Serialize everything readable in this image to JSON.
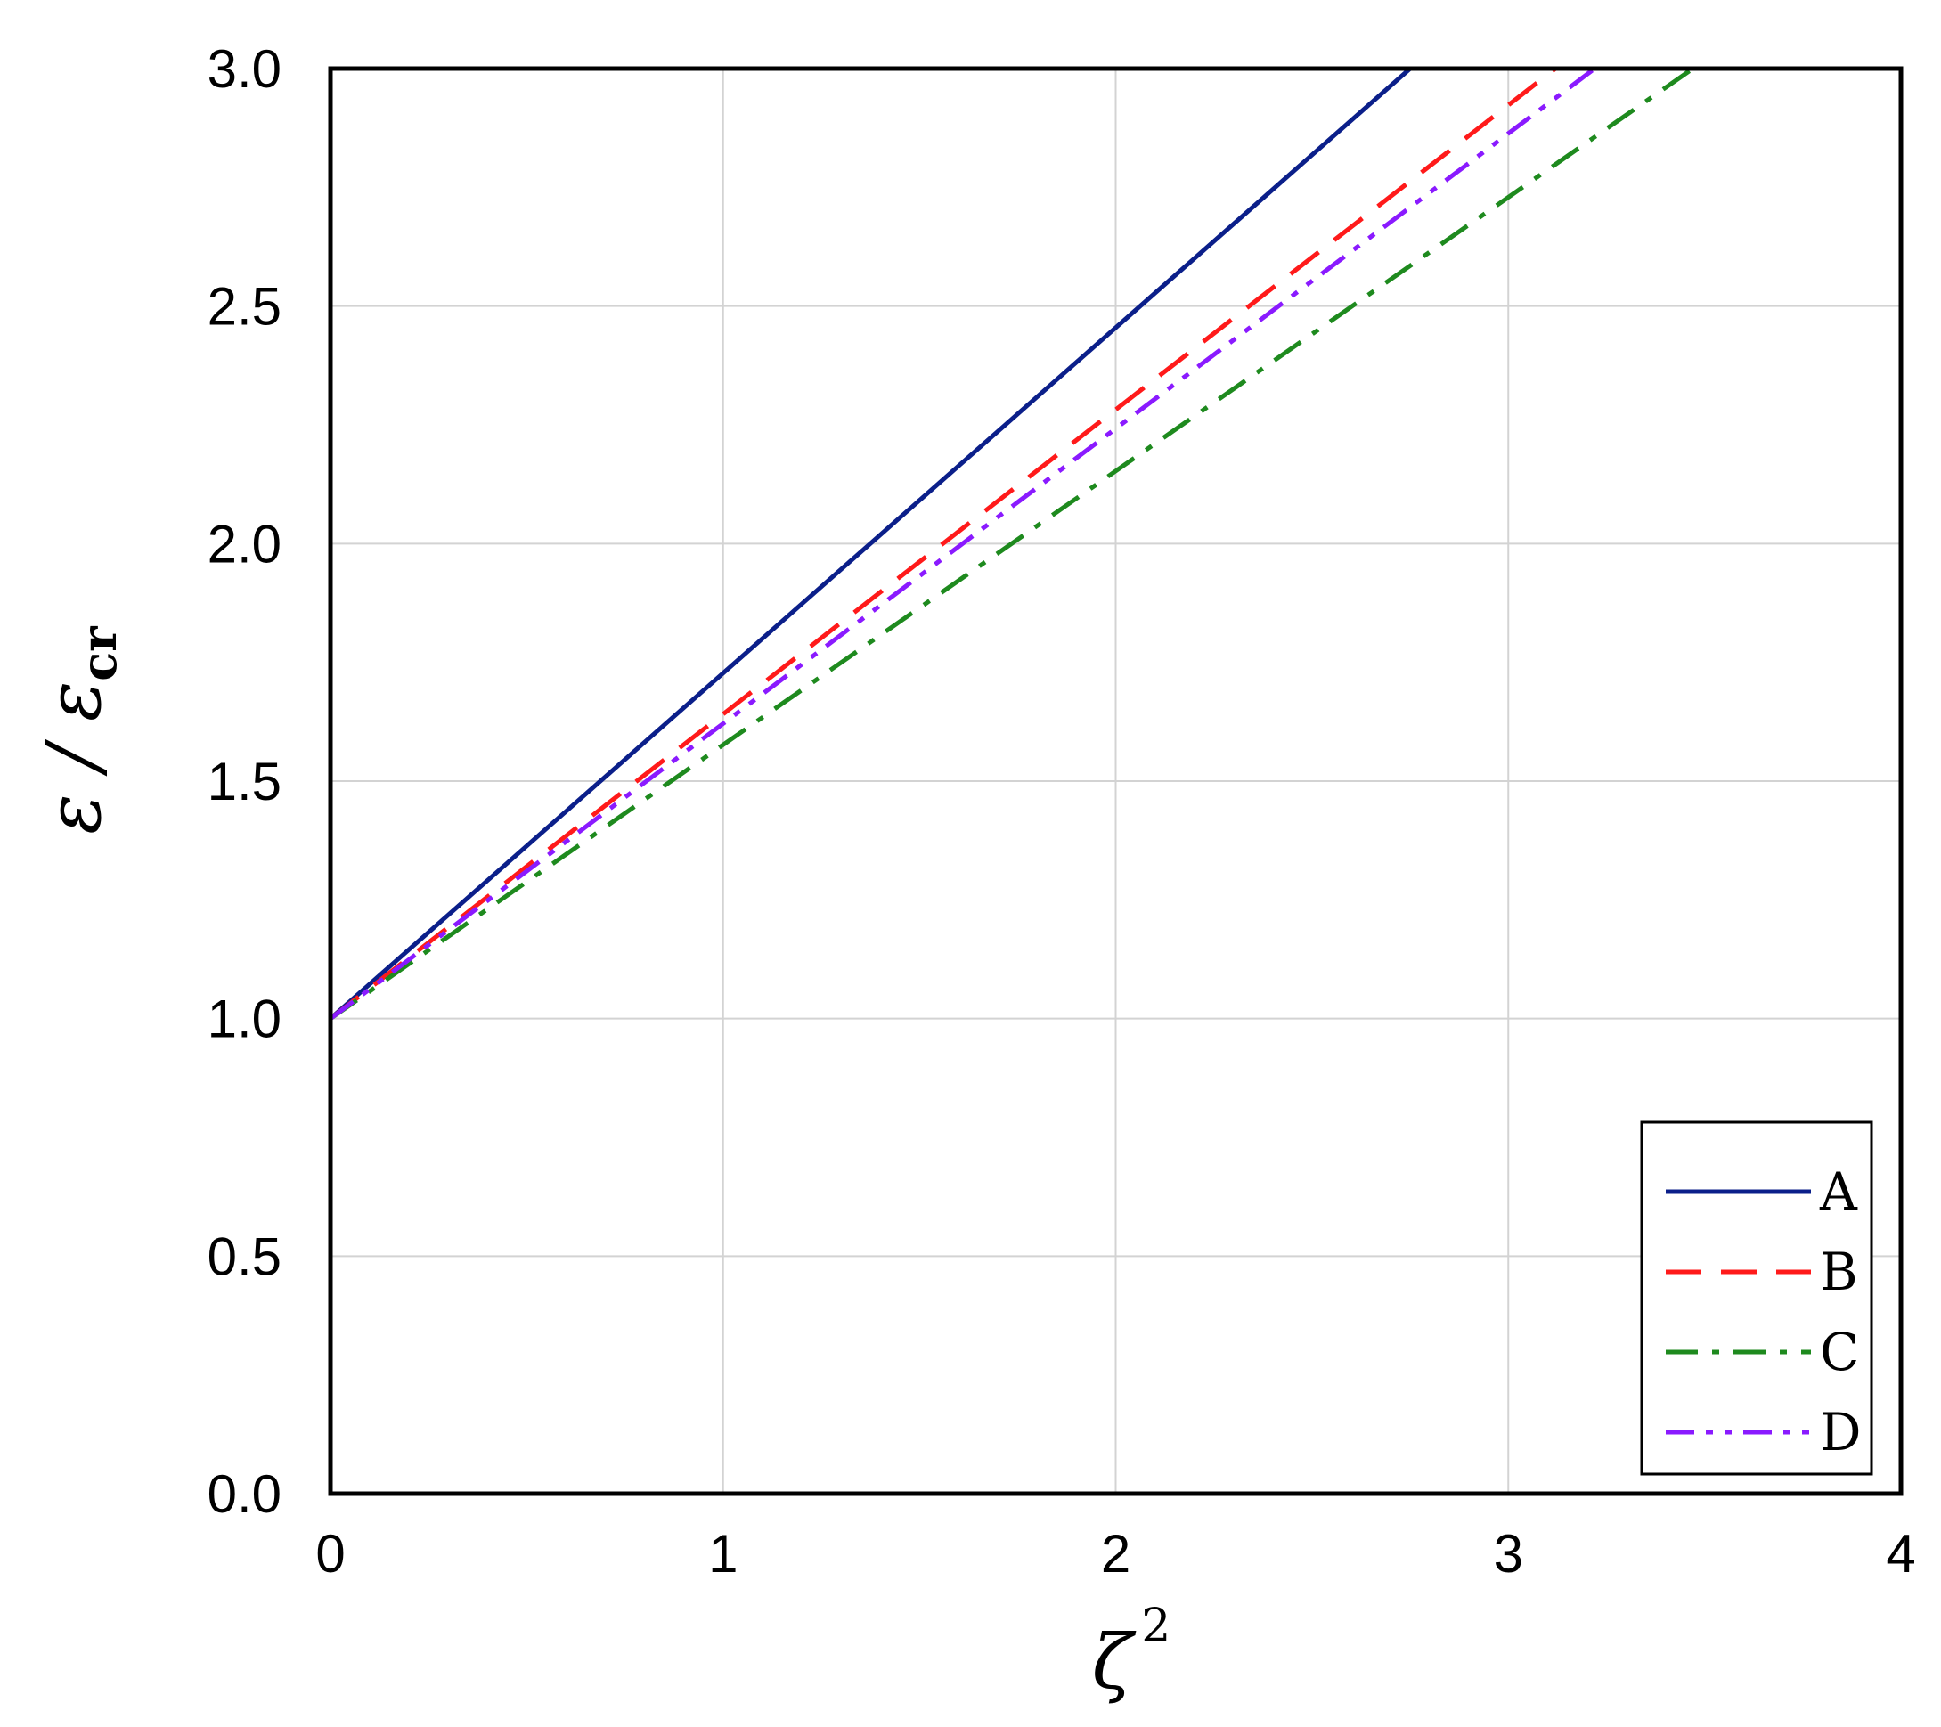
{
  "chart_data": {
    "type": "line",
    "xlabel": {
      "base": "ζ",
      "sup": "2"
    },
    "ylabel": {
      "base": "ε / ε",
      "sub": "cr"
    },
    "xlim": [
      0,
      4
    ],
    "ylim": [
      0,
      3
    ],
    "xticks": [
      "0",
      "1",
      "2",
      "3",
      "4"
    ],
    "yticks": [
      "0.0",
      "0.5",
      "1.0",
      "1.5",
      "2.0",
      "2.5",
      "3.0"
    ],
    "grid": true,
    "legend_position": "bottom-right",
    "series": [
      {
        "name": "A",
        "color": "#0b1f8a",
        "style": "solid",
        "x": [
          0,
          2.75
        ],
        "y": [
          1.0,
          3.0
        ]
      },
      {
        "name": "B",
        "color": "#ff1a1a",
        "style": "dashed",
        "x": [
          0,
          3.12
        ],
        "y": [
          1.0,
          3.0
        ]
      },
      {
        "name": "C",
        "color": "#1e8a1e",
        "style": "dashdot",
        "x": [
          0,
          3.47
        ],
        "y": [
          1.0,
          3.0
        ]
      },
      {
        "name": "D",
        "color": "#8a1aff",
        "style": "dashdotdot",
        "x": [
          0,
          3.22
        ],
        "y": [
          1.0,
          3.0
        ]
      }
    ]
  }
}
